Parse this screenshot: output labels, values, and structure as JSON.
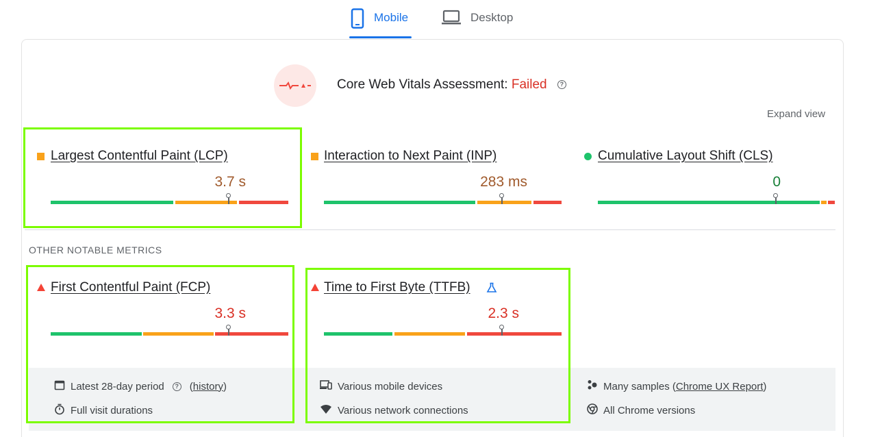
{
  "tabs": [
    {
      "label": "Mobile",
      "icon": "smartphone-icon",
      "active": true
    },
    {
      "label": "Desktop",
      "icon": "laptop-icon",
      "active": false
    }
  ],
  "assessment": {
    "prefix": "Core Web Vitals Assessment:",
    "status": "Failed",
    "help_glyph": "?",
    "status_color": "#d93025"
  },
  "expand_label": "Expand view",
  "core_metrics": [
    {
      "name": "Largest Contentful Paint (LCP)",
      "value": "3.7 s",
      "rating": "needs-improvement",
      "marker": "square-orange",
      "value_color": "#a05a2c"
    },
    {
      "name": "Interaction to Next Paint (INP)",
      "value": "283 ms",
      "rating": "needs-improvement",
      "marker": "square-orange",
      "value_color": "#a05a2c"
    },
    {
      "name": "Cumulative Layout Shift (CLS)",
      "value": "0",
      "rating": "good",
      "marker": "dot-green",
      "value_color": "#188038"
    }
  ],
  "section_label": "OTHER NOTABLE METRICS",
  "other_metrics": [
    {
      "name": "First Contentful Paint (FCP)",
      "value": "3.3 s",
      "rating": "poor",
      "marker": "triangle-red",
      "value_color": "#d93025"
    },
    {
      "name": "Time to First Byte (TTFB)",
      "value": "2.3 s",
      "rating": "poor",
      "marker": "triangle-red",
      "extra_icon": "flask-icon",
      "value_color": "#d93025"
    }
  ],
  "info": {
    "period": "Latest 28-day period",
    "history_link": "history",
    "visit": "Full visit durations",
    "devices": "Various mobile devices",
    "network": "Various network connections",
    "samples": "Many samples",
    "report_link": "Chrome UX Report",
    "versions": "All Chrome versions"
  },
  "colors": {
    "good": "#1ec36b",
    "needs_improvement": "#f9a21a",
    "poor": "#f0483e",
    "accent": "#1a73e8",
    "highlight": "#7cfc00"
  }
}
